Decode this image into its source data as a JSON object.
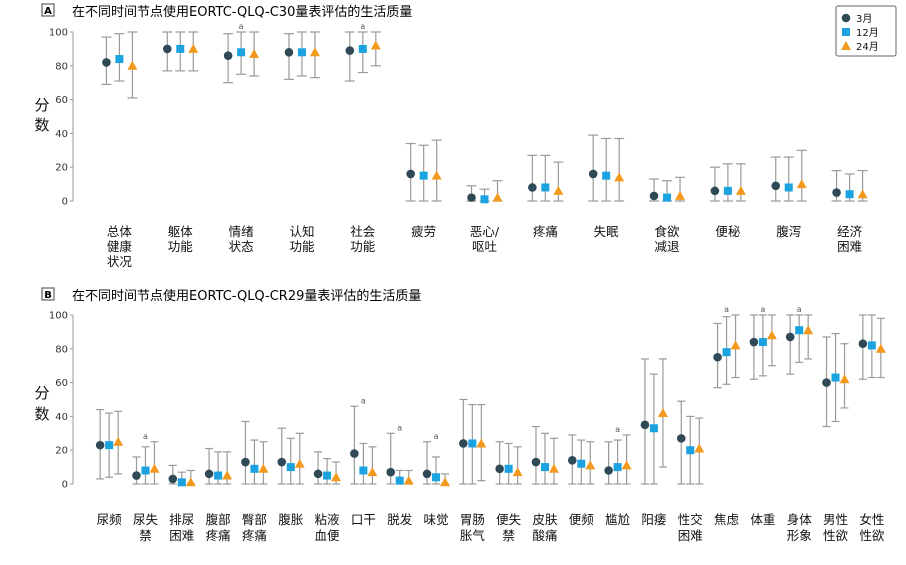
{
  "series_colors": {
    "m3": "#2f4a56",
    "m12": "#1aa3e0",
    "m24": "#f39a1e",
    "errbar": "#9a9a9a",
    "axis": "#999999"
  },
  "chart_data": [
    {
      "panel": "A",
      "type": "scatter",
      "title": "在不同时间节点使用EORTC-QLQ-C30量表评估的生活质量",
      "ylabel": "分数",
      "ylim": [
        0,
        100
      ],
      "yticks": [
        0,
        20,
        40,
        60,
        80,
        100
      ],
      "grid": false,
      "legend_position": "top-right",
      "categories": [
        "总体\n健康\n状况",
        "躯体\n功能",
        "情绪\n状态",
        "认知\n功能",
        "社会\n功能",
        "疲劳",
        "恶心/\n呕吐",
        "疼痛",
        "失眠",
        "食欲\n减退",
        "便秘",
        "腹泻",
        "经济\n困难"
      ],
      "series": [
        {
          "name": "3月",
          "marker": "circle",
          "values": [
            82,
            90,
            86,
            88,
            89,
            16,
            2,
            8,
            16,
            3,
            6,
            9,
            5
          ],
          "lower": [
            69,
            77,
            70,
            72,
            71,
            0,
            0,
            0,
            0,
            0,
            0,
            0,
            0
          ],
          "upper": [
            97,
            100,
            99,
            99,
            100,
            34,
            9,
            27,
            39,
            13,
            20,
            26,
            18
          ]
        },
        {
          "name": "12月",
          "marker": "square",
          "values": [
            84,
            90,
            88,
            88,
            90,
            15,
            1,
            8,
            15,
            2,
            6,
            8,
            4
          ],
          "lower": [
            71,
            77,
            75,
            74,
            76,
            0,
            0,
            0,
            0,
            0,
            0,
            0,
            0
          ],
          "upper": [
            99,
            100,
            100,
            100,
            100,
            33,
            7,
            27,
            37,
            12,
            22,
            26,
            16
          ]
        },
        {
          "name": "24月",
          "marker": "triangle",
          "values": [
            80,
            90,
            87,
            88,
            92,
            15,
            2,
            6,
            14,
            3,
            6,
            10,
            4
          ],
          "lower": [
            61,
            77,
            74,
            73,
            80,
            0,
            0,
            0,
            0,
            0,
            0,
            0,
            0
          ],
          "upper": [
            100,
            100,
            100,
            100,
            100,
            36,
            12,
            23,
            37,
            14,
            22,
            30,
            18
          ]
        }
      ],
      "annotations": [
        {
          "category_index": 2,
          "text": "a"
        },
        {
          "category_index": 4,
          "text": "a"
        }
      ]
    },
    {
      "panel": "B",
      "type": "scatter",
      "title": "在不同时间节点使用EORTC-QLQ-CR29量表评估的生活质量",
      "ylabel": "分数",
      "ylim": [
        0,
        100
      ],
      "yticks": [
        0,
        20,
        40,
        60,
        80,
        100
      ],
      "grid": false,
      "categories": [
        "尿频",
        "尿失\n禁",
        "排尿\n困难",
        "腹部\n疼痛",
        "臀部\n疼痛",
        "腹胀",
        "粘液\n血便",
        "口干",
        "脱发",
        "味觉",
        "胃肠\n胀气",
        "便失\n禁",
        "皮肤\n酸痛",
        "便频",
        "尴尬",
        "阳痿",
        "性交\n困难",
        "焦虑",
        "体重",
        "身体\n形象",
        "男性\n性欲",
        "女性\n性欲"
      ],
      "series": [
        {
          "name": "3月",
          "marker": "circle",
          "values": [
            23,
            5,
            3,
            6,
            13,
            13,
            6,
            18,
            7,
            6,
            24,
            9,
            13,
            14,
            8,
            35,
            27,
            75,
            84,
            87,
            60,
            83
          ],
          "lower": [
            3,
            0,
            0,
            0,
            0,
            0,
            0,
            0,
            0,
            0,
            0,
            0,
            0,
            0,
            0,
            0,
            0,
            57,
            62,
            65,
            34,
            62
          ],
          "upper": [
            44,
            16,
            11,
            21,
            37,
            33,
            19,
            46,
            30,
            25,
            50,
            25,
            34,
            29,
            25,
            74,
            49,
            95,
            100,
            100,
            87,
            100
          ]
        },
        {
          "name": "12月",
          "marker": "square",
          "values": [
            23,
            8,
            1,
            5,
            9,
            10,
            5,
            8,
            2,
            4,
            24,
            9,
            10,
            12,
            10,
            33,
            20,
            78,
            84,
            91,
            63,
            82
          ],
          "lower": [
            4,
            0,
            0,
            0,
            0,
            0,
            0,
            0,
            0,
            0,
            0,
            0,
            0,
            0,
            0,
            0,
            0,
            59,
            64,
            72,
            37,
            63
          ],
          "upper": [
            42,
            22,
            7,
            19,
            26,
            27,
            15,
            24,
            8,
            16,
            47,
            24,
            30,
            26,
            26,
            65,
            40,
            99,
            100,
            100,
            89,
            100
          ]
        },
        {
          "name": "24月",
          "marker": "triangle",
          "values": [
            25,
            9,
            1,
            5,
            9,
            12,
            4,
            7,
            2,
            1,
            24,
            7,
            9,
            11,
            11,
            42,
            21,
            82,
            88,
            91,
            62,
            80
          ],
          "lower": [
            6,
            0,
            0,
            0,
            0,
            0,
            0,
            0,
            0,
            0,
            2,
            0,
            0,
            0,
            0,
            10,
            0,
            63,
            70,
            74,
            45,
            63
          ],
          "upper": [
            43,
            25,
            8,
            19,
            25,
            30,
            13,
            22,
            8,
            6,
            47,
            22,
            27,
            25,
            29,
            74,
            39,
            100,
            100,
            100,
            83,
            98
          ]
        }
      ],
      "annotations": [
        {
          "category_index": 1,
          "text": "a"
        },
        {
          "category_index": 7,
          "text": "a"
        },
        {
          "category_index": 8,
          "text": "a"
        },
        {
          "category_index": 9,
          "text": "a"
        },
        {
          "category_index": 14,
          "text": "a"
        },
        {
          "category_index": 17,
          "text": "a"
        },
        {
          "category_index": 18,
          "text": "a"
        },
        {
          "category_index": 19,
          "text": "a"
        }
      ]
    }
  ]
}
